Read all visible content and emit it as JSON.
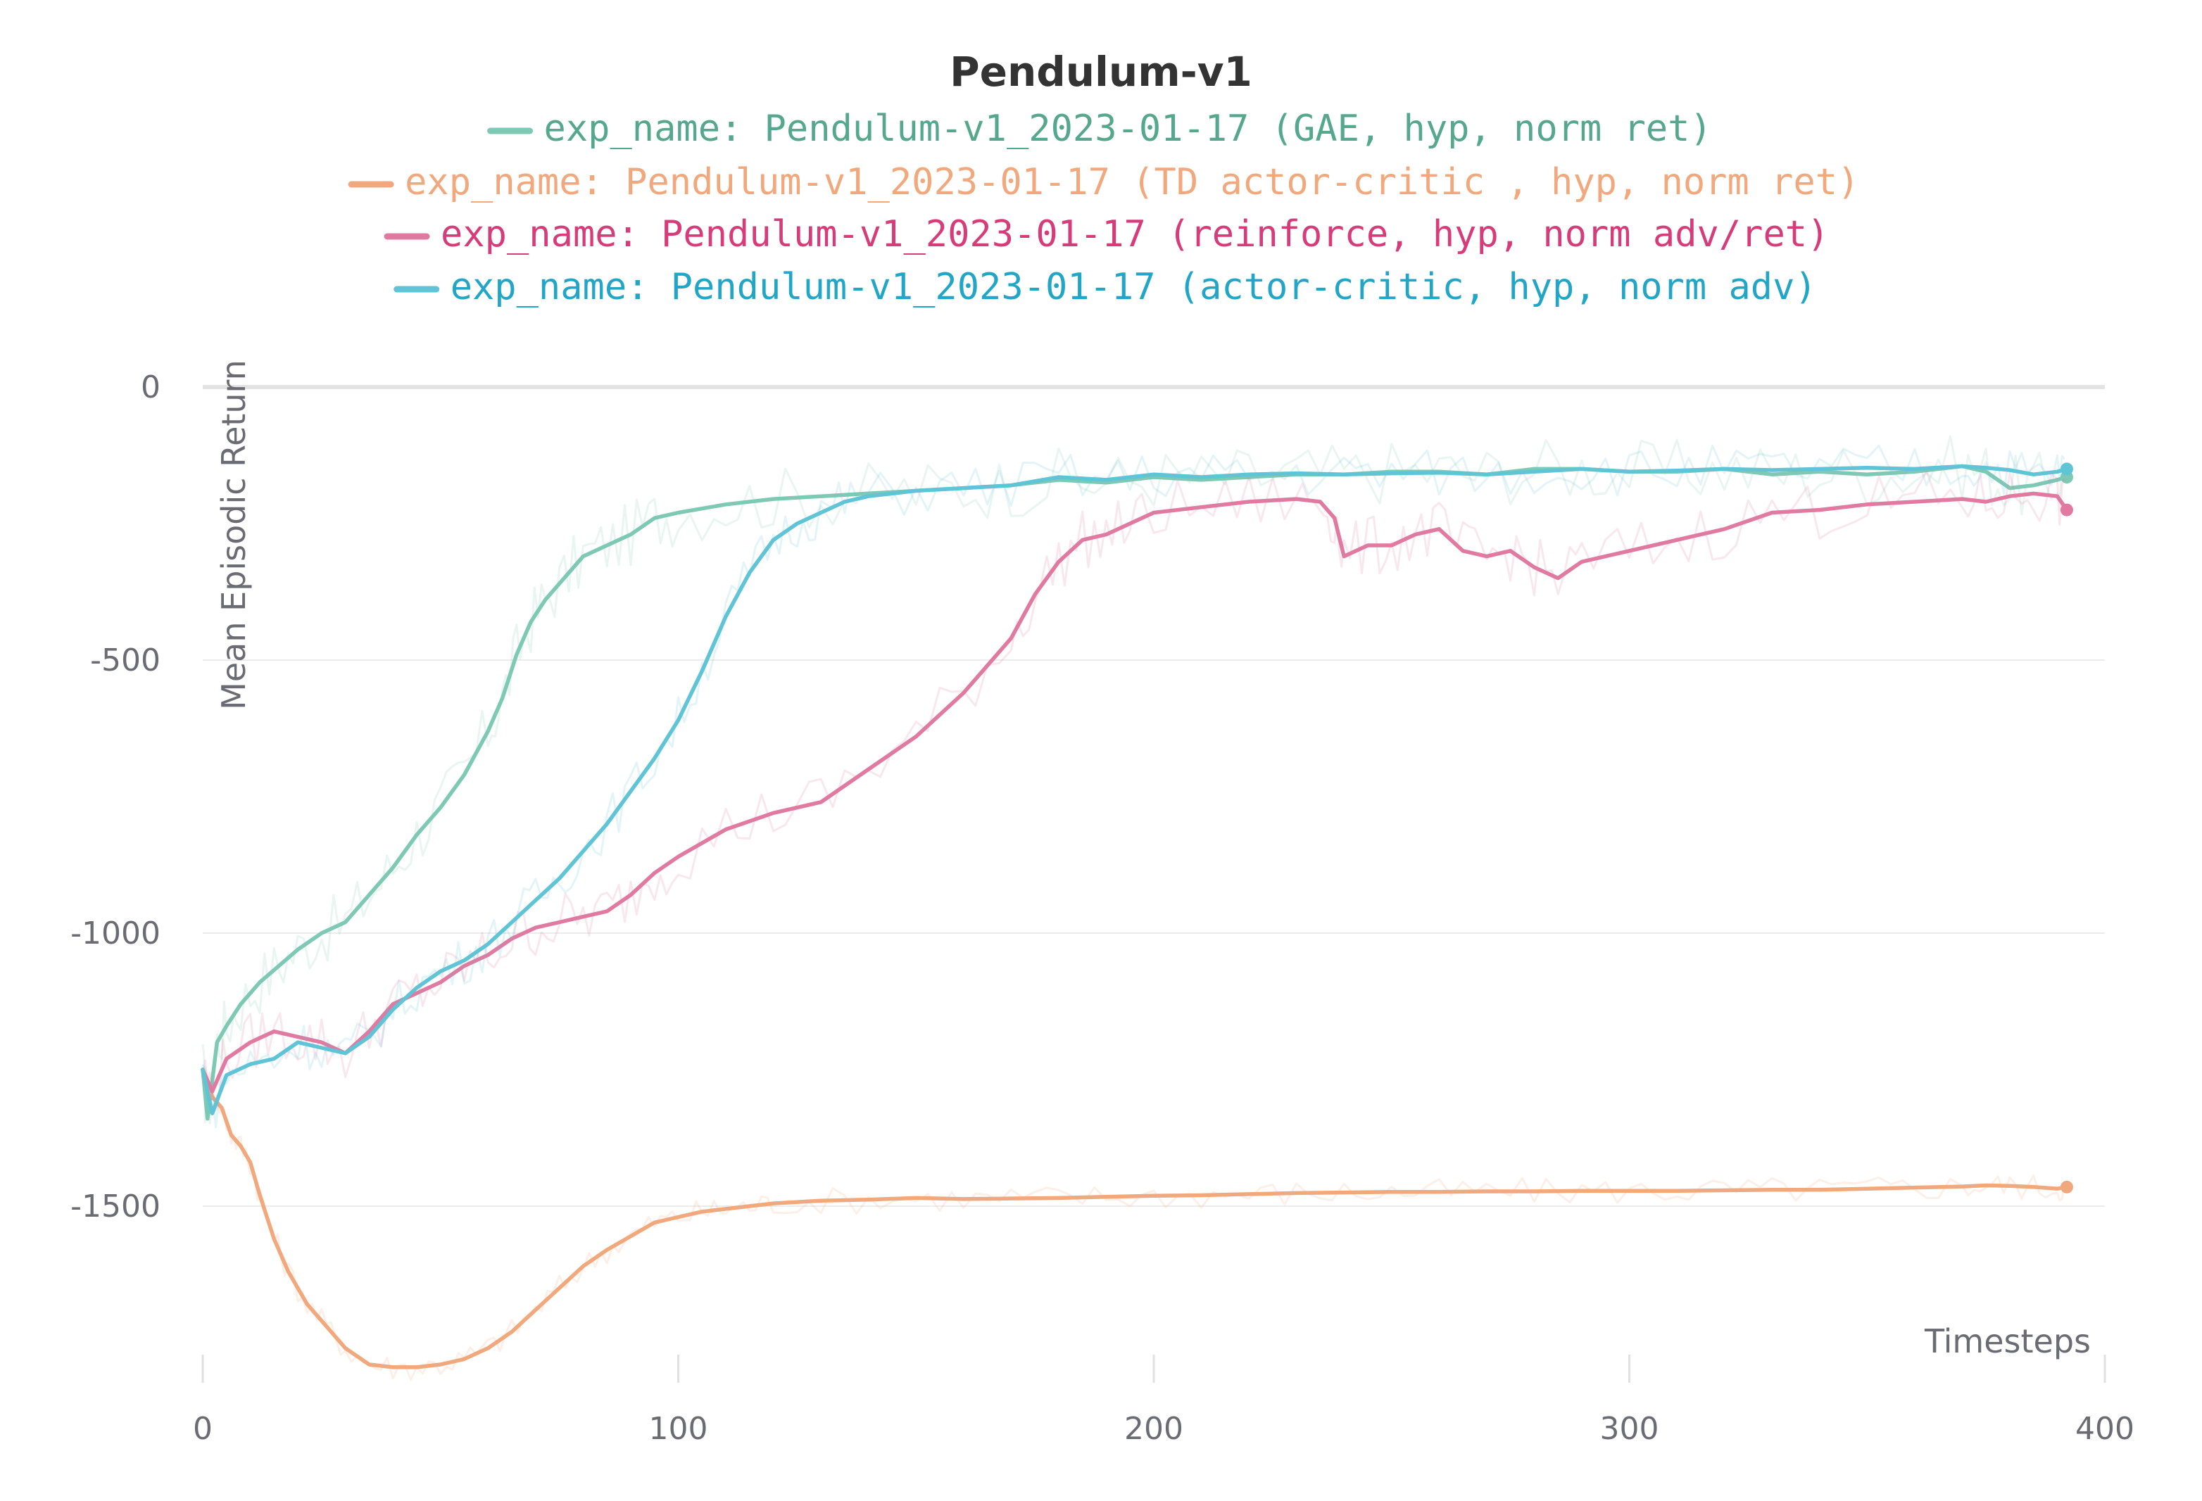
{
  "chart_data": {
    "type": "line",
    "title": "Pendulum-v1",
    "xlabel": "Timesteps",
    "ylabel": "Mean Episodic Return",
    "xlim": [
      0,
      400
    ],
    "ylim": [
      -1830,
      0
    ],
    "xticks": [
      "0",
      "100",
      "200",
      "300",
      "400"
    ],
    "yticks": [
      "0",
      "-500",
      "-1000",
      "-1500"
    ],
    "grid": true,
    "legend_position": "top-center",
    "series": [
      {
        "name": "exp_name: Pendulum-v1_2023-01-17 (GAE, hyp, norm ret)",
        "color": "#7ec9b4",
        "label_color": "#55a88d",
        "x": [
          0,
          1,
          3,
          5,
          8,
          12,
          16,
          20,
          25,
          30,
          35,
          40,
          45,
          50,
          55,
          60,
          63,
          66,
          69,
          72,
          76,
          80,
          85,
          90,
          95,
          100,
          110,
          120,
          130,
          140,
          150,
          160,
          170,
          180,
          190,
          200,
          210,
          220,
          230,
          240,
          250,
          260,
          270,
          280,
          290,
          300,
          310,
          320,
          330,
          340,
          350,
          360,
          370,
          375,
          380,
          385,
          390,
          392
        ],
        "values": [
          -1250,
          -1340,
          -1200,
          -1170,
          -1130,
          -1090,
          -1060,
          -1030,
          -1000,
          -980,
          -930,
          -880,
          -820,
          -770,
          -710,
          -630,
          -570,
          -490,
          -430,
          -390,
          -350,
          -310,
          -290,
          -270,
          -240,
          -230,
          -215,
          -205,
          -200,
          -195,
          -190,
          -185,
          -180,
          -170,
          -175,
          -165,
          -170,
          -165,
          -160,
          -160,
          -155,
          -155,
          -160,
          -150,
          -150,
          -155,
          -155,
          -150,
          -160,
          -155,
          -160,
          -155,
          -145,
          -155,
          -185,
          -180,
          -170,
          -165
        ]
      },
      {
        "name": "exp_name: Pendulum-v1_2023-01-17 (TD actor-critic , hyp, norm ret)",
        "color": "#f0a87c",
        "label_color": "#f0a87c",
        "x": [
          0,
          2,
          4,
          6,
          8,
          10,
          12,
          15,
          18,
          22,
          26,
          30,
          35,
          40,
          45,
          50,
          55,
          60,
          65,
          70,
          75,
          80,
          85,
          90,
          95,
          100,
          105,
          110,
          115,
          120,
          130,
          140,
          150,
          160,
          170,
          180,
          190,
          200,
          210,
          220,
          230,
          240,
          250,
          260,
          270,
          280,
          290,
          300,
          310,
          320,
          330,
          340,
          350,
          360,
          370,
          375,
          380,
          385,
          390,
          392
        ],
        "values": [
          -1250,
          -1300,
          -1320,
          -1370,
          -1390,
          -1420,
          -1480,
          -1560,
          -1620,
          -1680,
          -1720,
          -1760,
          -1790,
          -1795,
          -1795,
          -1790,
          -1780,
          -1760,
          -1730,
          -1690,
          -1650,
          -1610,
          -1580,
          -1555,
          -1530,
          -1520,
          -1510,
          -1505,
          -1500,
          -1495,
          -1490,
          -1488,
          -1485,
          -1487,
          -1486,
          -1485,
          -1483,
          -1481,
          -1480,
          -1478,
          -1476,
          -1475,
          -1474,
          -1474,
          -1473,
          -1473,
          -1472,
          -1472,
          -1472,
          -1471,
          -1470,
          -1470,
          -1468,
          -1466,
          -1464,
          -1462,
          -1463,
          -1465,
          -1468,
          -1465
        ]
      },
      {
        "name": "exp_name: Pendulum-v1_2023-01-17 (reinforce, hyp, norm adv/ret)",
        "color": "#e07aa0",
        "label_color": "#d63c7a",
        "x": [
          0,
          2,
          5,
          10,
          15,
          20,
          25,
          30,
          35,
          40,
          45,
          50,
          55,
          60,
          65,
          70,
          75,
          80,
          85,
          90,
          95,
          100,
          110,
          120,
          130,
          140,
          150,
          160,
          170,
          175,
          180,
          185,
          190,
          195,
          200,
          210,
          220,
          230,
          235,
          238,
          240,
          245,
          250,
          255,
          260,
          265,
          270,
          275,
          280,
          285,
          290,
          300,
          310,
          320,
          330,
          340,
          350,
          360,
          370,
          375,
          380,
          385,
          390,
          392
        ],
        "values": [
          -1250,
          -1290,
          -1230,
          -1200,
          -1180,
          -1190,
          -1200,
          -1220,
          -1180,
          -1130,
          -1110,
          -1090,
          -1060,
          -1040,
          -1010,
          -990,
          -980,
          -970,
          -960,
          -930,
          -890,
          -860,
          -810,
          -780,
          -760,
          -700,
          -640,
          -560,
          -460,
          -380,
          -320,
          -280,
          -270,
          -250,
          -230,
          -220,
          -210,
          -205,
          -210,
          -240,
          -310,
          -290,
          -290,
          -270,
          -260,
          -300,
          -310,
          -300,
          -330,
          -350,
          -320,
          -300,
          -280,
          -260,
          -230,
          -225,
          -215,
          -210,
          -205,
          -210,
          -200,
          -195,
          -200,
          -225
        ]
      },
      {
        "name": "exp_name: Pendulum-v1_2023-01-17 (actor-critic, hyp, norm adv)",
        "color": "#5ec4d6",
        "label_color": "#22a6c8",
        "x": [
          0,
          2,
          5,
          10,
          15,
          20,
          25,
          30,
          35,
          40,
          45,
          50,
          55,
          60,
          65,
          70,
          75,
          80,
          85,
          90,
          95,
          100,
          105,
          110,
          115,
          120,
          125,
          130,
          135,
          140,
          150,
          160,
          170,
          180,
          190,
          200,
          210,
          220,
          230,
          240,
          250,
          260,
          270,
          280,
          290,
          300,
          310,
          320,
          330,
          340,
          350,
          360,
          370,
          375,
          380,
          385,
          390,
          392
        ],
        "values": [
          -1250,
          -1330,
          -1260,
          -1240,
          -1230,
          -1200,
          -1210,
          -1220,
          -1190,
          -1140,
          -1100,
          -1070,
          -1050,
          -1020,
          -980,
          -940,
          -900,
          -850,
          -800,
          -740,
          -680,
          -610,
          -520,
          -420,
          -340,
          -280,
          -250,
          -230,
          -210,
          -200,
          -190,
          -185,
          -180,
          -165,
          -170,
          -160,
          -165,
          -160,
          -158,
          -160,
          -158,
          -157,
          -160,
          -155,
          -150,
          -155,
          -153,
          -150,
          -152,
          -150,
          -148,
          -150,
          -145,
          -148,
          -152,
          -160,
          -155,
          -150
        ]
      }
    ]
  }
}
